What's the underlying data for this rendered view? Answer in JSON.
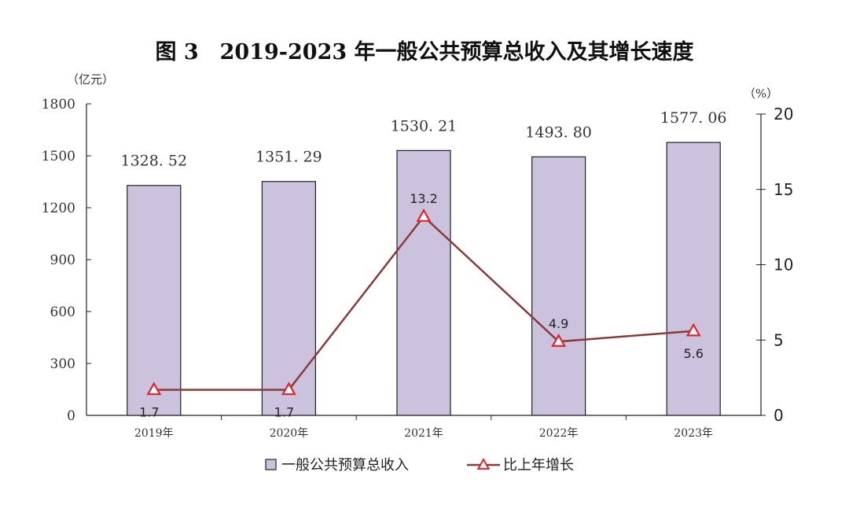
{
  "chart_data": {
    "type": "bar",
    "title": "图 3　2019-2023 年一般公共预算总收入及其增长速度",
    "categories": [
      "2019年",
      "2020年",
      "2021年",
      "2022年",
      "2023年"
    ],
    "series": [
      {
        "name": "一般公共预算总收入",
        "type": "bar",
        "axis": "left",
        "values": [
          1328.52,
          1351.29,
          1530.21,
          1493.8,
          1577.06
        ],
        "labels": [
          "1328. 52",
          "1351. 29",
          "1530. 21",
          "1493. 80",
          "1577. 06"
        ],
        "color": "#cbc3dd",
        "edge_color": "#222222"
      },
      {
        "name": "比上年增长",
        "type": "line",
        "axis": "right",
        "marker": "triangle",
        "values": [
          1.7,
          1.7,
          13.2,
          4.9,
          5.6
        ],
        "labels": [
          "1.7",
          "1.7",
          "13.2",
          "4.9",
          "5.6"
        ],
        "color": "#8b3a3a",
        "marker_color": "#e8202a"
      }
    ],
    "y_left": {
      "unit": "（亿元）",
      "ylim": [
        0,
        1800
      ],
      "ticks": [
        0,
        300,
        600,
        900,
        1200,
        1500,
        1800
      ],
      "tick_labels": [
        "0",
        "300",
        "600",
        "900",
        "1200",
        "1500",
        "1800"
      ]
    },
    "y_right": {
      "unit": "（%）",
      "ylim": [
        0,
        20
      ],
      "ticks": [
        0,
        5,
        10,
        15,
        20
      ],
      "tick_labels": [
        "0",
        "5",
        "10",
        "15",
        "20"
      ]
    },
    "grid": false,
    "legend": "bottom-center"
  }
}
